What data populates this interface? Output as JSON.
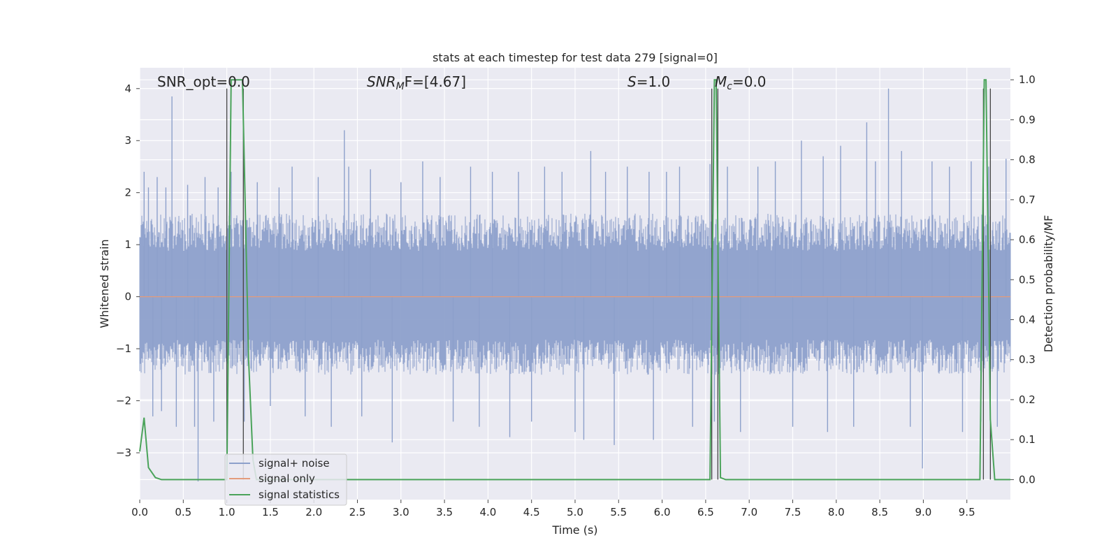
{
  "chart_data": {
    "type": "line",
    "title": "stats at each timestep for test data 279 [signal=0]",
    "xlabel": "Time (s)",
    "ylabel_left": "Whitened strain",
    "ylabel_right": "Detection probability/MF",
    "xlim": [
      0.0,
      10.0
    ],
    "ylim_left": [
      -3.9,
      4.4
    ],
    "ylim_right": [
      -0.05,
      1.03
    ],
    "x_ticks": [
      "0.0",
      "0.5",
      "1.0",
      "1.5",
      "2.0",
      "2.5",
      "3.0",
      "3.5",
      "4.0",
      "4.5",
      "5.0",
      "5.5",
      "6.0",
      "6.5",
      "7.0",
      "7.5",
      "8.0",
      "8.5",
      "9.0",
      "9.5"
    ],
    "y_ticks_left": [
      "−3",
      "−2",
      "−1",
      "0",
      "1",
      "2",
      "3",
      "4"
    ],
    "y_ticks_right": [
      "0.0",
      "0.1",
      "0.2",
      "0.3",
      "0.4",
      "0.5",
      "0.6",
      "0.7",
      "0.8",
      "0.9",
      "1.0"
    ],
    "grid": true,
    "legend_position": "lower-left",
    "annotations": {
      "snr_opt": "SNR_opt=0.0",
      "snr_mf_main": "SNR",
      "snr_mf_sub": "M",
      "snr_mf_rest": "F=[4.67]",
      "s_sym": "S",
      "s_rest": "=1.0",
      "mc_sym": "M",
      "mc_sub": "c",
      "mc_rest": "=0.0"
    },
    "series": [
      {
        "name": "signal+ noise",
        "axis": "left",
        "color": "#8da0cb",
        "noise_band": [
          -1.5,
          1.6
        ],
        "spikes": [
          [
            0.05,
            2.4
          ],
          [
            0.1,
            2.1
          ],
          [
            0.15,
            -2.3
          ],
          [
            0.2,
            2.3
          ],
          [
            0.25,
            -2.2
          ],
          [
            0.3,
            2.1
          ],
          [
            0.37,
            3.85
          ],
          [
            0.42,
            -2.5
          ],
          [
            0.55,
            2.15
          ],
          [
            0.63,
            -2.5
          ],
          [
            0.67,
            -3.55
          ],
          [
            0.75,
            2.3
          ],
          [
            0.85,
            -2.4
          ],
          [
            0.9,
            2.1
          ],
          [
            1.05,
            2.4
          ],
          [
            1.2,
            -2.4
          ],
          [
            1.35,
            2.2
          ],
          [
            1.5,
            -2.1
          ],
          [
            1.6,
            2.1
          ],
          [
            1.75,
            2.5
          ],
          [
            1.9,
            -2.3
          ],
          [
            2.05,
            2.3
          ],
          [
            2.2,
            -2.5
          ],
          [
            2.35,
            3.2
          ],
          [
            2.4,
            2.5
          ],
          [
            2.55,
            -2.3
          ],
          [
            2.65,
            2.45
          ],
          [
            2.9,
            -2.8
          ],
          [
            3.0,
            2.2
          ],
          [
            3.25,
            2.6
          ],
          [
            3.45,
            2.3
          ],
          [
            3.6,
            -2.4
          ],
          [
            3.8,
            2.5
          ],
          [
            3.9,
            -2.5
          ],
          [
            4.05,
            2.4
          ],
          [
            4.25,
            -2.7
          ],
          [
            4.35,
            2.4
          ],
          [
            4.5,
            -2.4
          ],
          [
            4.65,
            2.5
          ],
          [
            4.85,
            2.4
          ],
          [
            5.0,
            -2.6
          ],
          [
            5.1,
            -2.75
          ],
          [
            5.18,
            2.8
          ],
          [
            5.35,
            2.4
          ],
          [
            5.45,
            -2.85
          ],
          [
            5.6,
            2.5
          ],
          [
            5.85,
            2.4
          ],
          [
            5.9,
            -2.75
          ],
          [
            6.05,
            2.4
          ],
          [
            6.2,
            2.5
          ],
          [
            6.35,
            -2.5
          ],
          [
            6.55,
            2.55
          ],
          [
            6.6,
            -2.4
          ],
          [
            6.75,
            2.5
          ],
          [
            6.9,
            -2.6
          ],
          [
            7.1,
            2.5
          ],
          [
            7.3,
            2.6
          ],
          [
            7.5,
            -2.5
          ],
          [
            7.6,
            3.0
          ],
          [
            7.85,
            2.7
          ],
          [
            7.9,
            -2.6
          ],
          [
            8.05,
            2.9
          ],
          [
            8.2,
            -2.5
          ],
          [
            8.35,
            3.35
          ],
          [
            8.45,
            2.6
          ],
          [
            8.6,
            4.0
          ],
          [
            8.75,
            2.8
          ],
          [
            8.85,
            -2.5
          ],
          [
            8.99,
            -3.3
          ],
          [
            9.1,
            2.6
          ],
          [
            9.3,
            2.5
          ],
          [
            9.45,
            -2.6
          ],
          [
            9.55,
            2.6
          ],
          [
            9.66,
            -2.4
          ],
          [
            9.75,
            2.5
          ],
          [
            9.85,
            -2.5
          ],
          [
            9.95,
            2.65
          ]
        ]
      },
      {
        "name": "signal only",
        "axis": "left",
        "color": "#e39b7b",
        "x": [
          0.0,
          10.0
        ],
        "y": [
          0.0,
          0.0
        ]
      },
      {
        "name": "signal statistics",
        "axis": "right",
        "color": "#4aa35a",
        "x": [
          0.0,
          0.05,
          0.1,
          0.18,
          0.25,
          1.0,
          1.05,
          1.12,
          1.18,
          1.25,
          1.3,
          1.34,
          1.4,
          6.55,
          6.6,
          6.62,
          6.67,
          6.73,
          9.65,
          9.7,
          9.72,
          9.77,
          9.82,
          9.88,
          10.0
        ],
        "y": [
          0.07,
          0.155,
          0.03,
          0.005,
          0.0,
          0.0,
          1.0,
          1.0,
          1.0,
          0.3,
          0.05,
          0.0,
          0.0,
          0.0,
          1.0,
          1.0,
          0.005,
          0.0,
          0.0,
          1.0,
          1.0,
          0.15,
          0.0,
          0.0,
          0.0
        ]
      },
      {
        "name": "vertical markers",
        "axis": "left",
        "color": "#444444",
        "x": [
          1.0,
          1.19,
          6.57,
          6.64,
          9.69,
          9.77
        ]
      }
    ]
  }
}
